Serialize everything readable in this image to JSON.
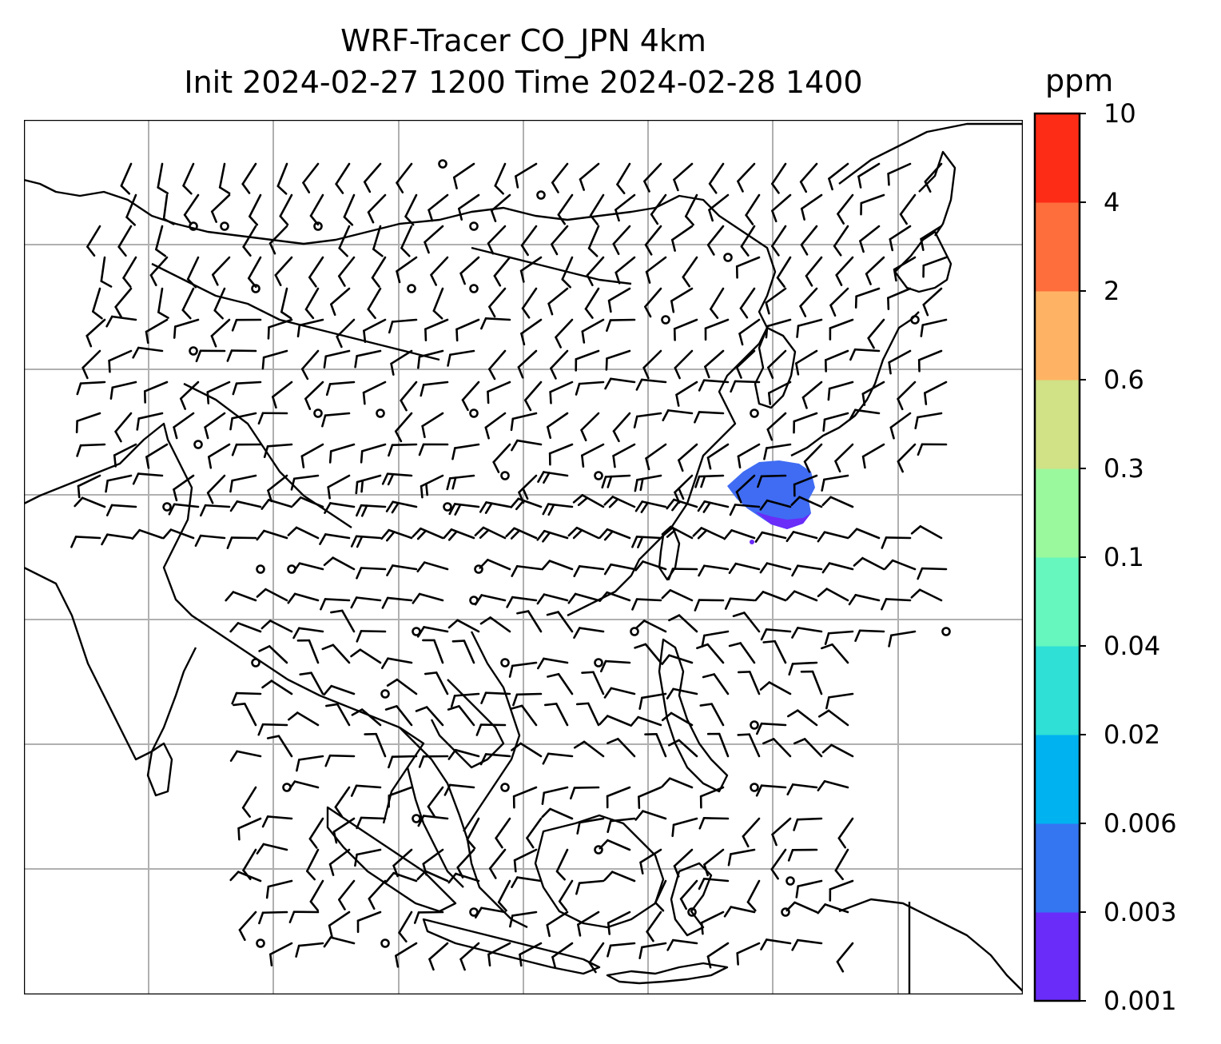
{
  "title": {
    "line1": "WRF-Tracer CO_JPN 4km",
    "line2": "Init 2024-02-27 1200 Time 2024-02-28 1400"
  },
  "colorbar": {
    "label": "ppm",
    "ticks": [
      "0.001",
      "0.003",
      "0.006",
      "0.02",
      "0.04",
      "0.1",
      "0.3",
      "0.6",
      "2",
      "4",
      "10"
    ],
    "colors": [
      "#6a2cf8",
      "#3475f2",
      "#00b2ef",
      "#2ee0d6",
      "#66f7bf",
      "#9af99c",
      "#d0e186",
      "#fdb363",
      "#fd6e3c",
      "#fd2c16"
    ]
  },
  "map": {
    "gridlines": "on",
    "plume_color": "#3f6cf3",
    "plume_edge_color": "#6a2cf8"
  }
}
